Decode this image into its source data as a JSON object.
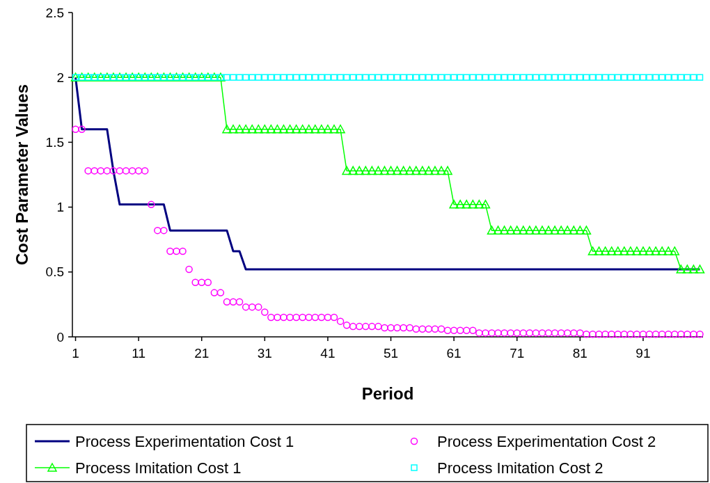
{
  "chart_data": {
    "type": "line",
    "xlabel": "Period",
    "ylabel": "Cost Parameter Values",
    "x": [
      1,
      2,
      3,
      4,
      5,
      6,
      7,
      8,
      9,
      10,
      11,
      12,
      13,
      14,
      15,
      16,
      17,
      18,
      19,
      20,
      21,
      22,
      23,
      24,
      25,
      26,
      27,
      28,
      29,
      30,
      31,
      32,
      33,
      34,
      35,
      36,
      37,
      38,
      39,
      40,
      41,
      42,
      43,
      44,
      45,
      46,
      47,
      48,
      49,
      50,
      51,
      52,
      53,
      54,
      55,
      56,
      57,
      58,
      59,
      60,
      61,
      62,
      63,
      64,
      65,
      66,
      67,
      68,
      69,
      70,
      71,
      72,
      73,
      74,
      75,
      76,
      77,
      78,
      79,
      80,
      81,
      82,
      83,
      84,
      85,
      86,
      87,
      88,
      89,
      90,
      91,
      92,
      93,
      94,
      95,
      96,
      97,
      98,
      99,
      100
    ],
    "xlim": [
      0.5,
      100.5
    ],
    "xticks": [
      1,
      11,
      21,
      31,
      41,
      51,
      61,
      71,
      81,
      91
    ],
    "ylim": [
      0,
      2.5
    ],
    "yticks": [
      0,
      0.5,
      1,
      1.5,
      2,
      2.5
    ],
    "grid": false,
    "legend": "bottom",
    "series": [
      {
        "name": "Process Experimentation Cost 1",
        "marker": "none",
        "color": "#000080",
        "values": [
          2,
          1.6,
          1.6,
          1.6,
          1.6,
          1.6,
          1.28,
          1.02,
          1.02,
          1.02,
          1.02,
          1.02,
          1.02,
          1.02,
          1.02,
          0.82,
          0.82,
          0.82,
          0.82,
          0.82,
          0.82,
          0.82,
          0.82,
          0.82,
          0.82,
          0.66,
          0.66,
          0.52,
          0.52,
          0.52,
          0.52,
          0.52,
          0.52,
          0.52,
          0.52,
          0.52,
          0.52,
          0.52,
          0.52,
          0.52,
          0.52,
          0.52,
          0.52,
          0.52,
          0.52,
          0.52,
          0.52,
          0.52,
          0.52,
          0.52,
          0.52,
          0.52,
          0.52,
          0.52,
          0.52,
          0.52,
          0.52,
          0.52,
          0.52,
          0.52,
          0.52,
          0.52,
          0.52,
          0.52,
          0.52,
          0.52,
          0.52,
          0.52,
          0.52,
          0.52,
          0.52,
          0.52,
          0.52,
          0.52,
          0.52,
          0.52,
          0.52,
          0.52,
          0.52,
          0.52,
          0.52,
          0.52,
          0.52,
          0.52,
          0.52,
          0.52,
          0.52,
          0.52,
          0.52,
          0.52,
          0.52,
          0.52,
          0.52,
          0.52,
          0.52,
          0.52,
          0.52,
          0.52,
          0.52,
          0.52
        ]
      },
      {
        "name": "Process Experimentation Cost 2",
        "type": "scatter",
        "marker": "circle",
        "color": "#ff00ff",
        "values": [
          1.6,
          1.6,
          1.28,
          1.28,
          1.28,
          1.28,
          1.28,
          1.28,
          1.28,
          1.28,
          1.28,
          1.28,
          1.02,
          0.82,
          0.82,
          0.66,
          0.66,
          0.66,
          0.52,
          0.42,
          0.42,
          0.42,
          0.34,
          0.34,
          0.27,
          0.27,
          0.27,
          0.23,
          0.23,
          0.23,
          0.19,
          0.15,
          0.15,
          0.15,
          0.15,
          0.15,
          0.15,
          0.15,
          0.15,
          0.15,
          0.15,
          0.15,
          0.12,
          0.09,
          0.08,
          0.08,
          0.08,
          0.08,
          0.08,
          0.07,
          0.07,
          0.07,
          0.07,
          0.07,
          0.06,
          0.06,
          0.06,
          0.06,
          0.06,
          0.05,
          0.05,
          0.05,
          0.05,
          0.05,
          0.03,
          0.03,
          0.03,
          0.03,
          0.03,
          0.03,
          0.03,
          0.03,
          0.03,
          0.03,
          0.03,
          0.03,
          0.03,
          0.03,
          0.03,
          0.03,
          0.03,
          0.02,
          0.02,
          0.02,
          0.02,
          0.02,
          0.02,
          0.02,
          0.02,
          0.02,
          0.02,
          0.02,
          0.02,
          0.02,
          0.02,
          0.02,
          0.02,
          0.02,
          0.02,
          0.02
        ]
      },
      {
        "name": "Process Imitation Cost 1",
        "marker": "triangle",
        "color": "#00ff00",
        "values": [
          2,
          2,
          2,
          2,
          2,
          2,
          2,
          2,
          2,
          2,
          2,
          2,
          2,
          2,
          2,
          2,
          2,
          2,
          2,
          2,
          2,
          2,
          2,
          2,
          1.6,
          1.6,
          1.6,
          1.6,
          1.6,
          1.6,
          1.6,
          1.6,
          1.6,
          1.6,
          1.6,
          1.6,
          1.6,
          1.6,
          1.6,
          1.6,
          1.6,
          1.6,
          1.6,
          1.28,
          1.28,
          1.28,
          1.28,
          1.28,
          1.28,
          1.28,
          1.28,
          1.28,
          1.28,
          1.28,
          1.28,
          1.28,
          1.28,
          1.28,
          1.28,
          1.28,
          1.02,
          1.02,
          1.02,
          1.02,
          1.02,
          1.02,
          0.82,
          0.82,
          0.82,
          0.82,
          0.82,
          0.82,
          0.82,
          0.82,
          0.82,
          0.82,
          0.82,
          0.82,
          0.82,
          0.82,
          0.82,
          0.82,
          0.66,
          0.66,
          0.66,
          0.66,
          0.66,
          0.66,
          0.66,
          0.66,
          0.66,
          0.66,
          0.66,
          0.66,
          0.66,
          0.66,
          0.52,
          0.52,
          0.52,
          0.52
        ]
      },
      {
        "name": "Process Imitation Cost 2",
        "type": "scatter",
        "marker": "square",
        "color": "#00ffff",
        "values": [
          2,
          2,
          2,
          2,
          2,
          2,
          2,
          2,
          2,
          2,
          2,
          2,
          2,
          2,
          2,
          2,
          2,
          2,
          2,
          2,
          2,
          2,
          2,
          2,
          2,
          2,
          2,
          2,
          2,
          2,
          2,
          2,
          2,
          2,
          2,
          2,
          2,
          2,
          2,
          2,
          2,
          2,
          2,
          2,
          2,
          2,
          2,
          2,
          2,
          2,
          2,
          2,
          2,
          2,
          2,
          2,
          2,
          2,
          2,
          2,
          2,
          2,
          2,
          2,
          2,
          2,
          2,
          2,
          2,
          2,
          2,
          2,
          2,
          2,
          2,
          2,
          2,
          2,
          2,
          2,
          2,
          2,
          2,
          2,
          2,
          2,
          2,
          2,
          2,
          2,
          2,
          2,
          2,
          2,
          2,
          2,
          2,
          2,
          2,
          2
        ]
      }
    ]
  }
}
